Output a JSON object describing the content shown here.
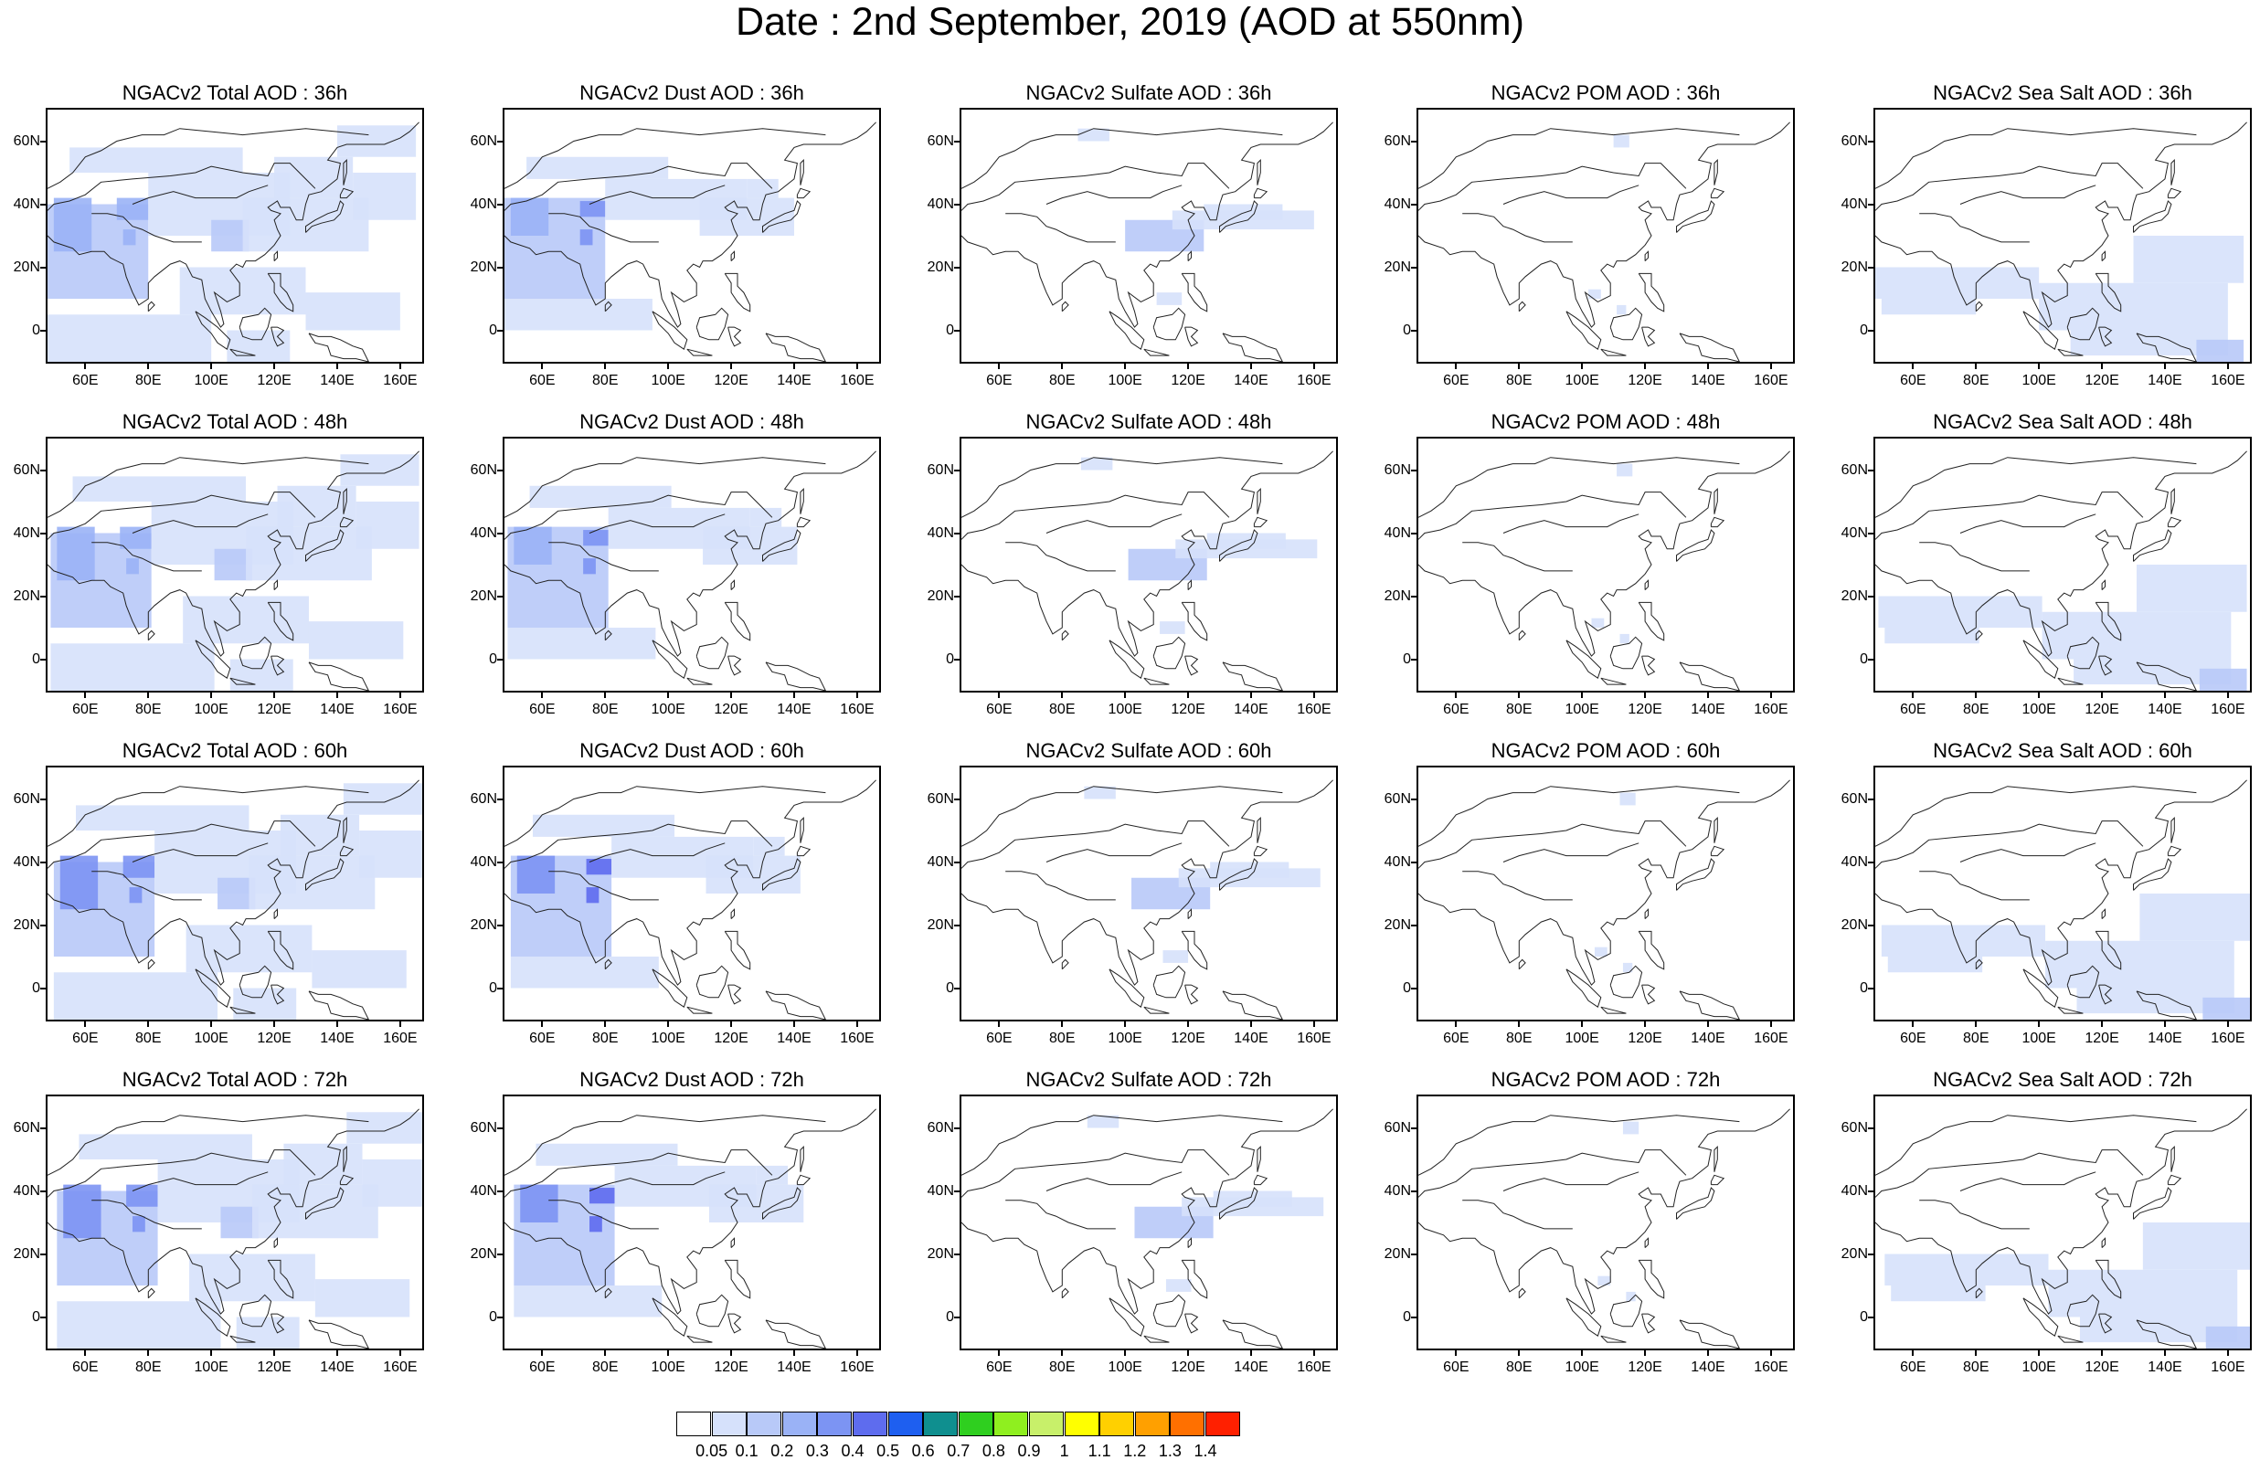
{
  "title": "Date : 2nd September, 2019 (AOD at 550nm)",
  "lat_labels": [
    "60N",
    "40N",
    "20N",
    "0"
  ],
  "lon_labels": [
    "60E",
    "80E",
    "100E",
    "120E",
    "140E",
    "160E"
  ],
  "lat_values": [
    60,
    40,
    20,
    0
  ],
  "lon_values": [
    60,
    80,
    100,
    120,
    140,
    160
  ],
  "extent": {
    "lon": [
      48,
      167
    ],
    "lat": [
      -10,
      70
    ]
  },
  "panels": [
    {
      "title": "NGACv2 Total AOD : 36h",
      "field": "total",
      "hour": 36
    },
    {
      "title": "NGACv2 Dust AOD : 36h",
      "field": "dust",
      "hour": 36
    },
    {
      "title": "NGACv2 Sulfate AOD : 36h",
      "field": "sulfate",
      "hour": 36
    },
    {
      "title": "NGACv2 POM AOD : 36h",
      "field": "pom",
      "hour": 36
    },
    {
      "title": "NGACv2 Sea Salt AOD : 36h",
      "field": "seasalt",
      "hour": 36
    },
    {
      "title": "NGACv2 Total AOD : 48h",
      "field": "total",
      "hour": 48
    },
    {
      "title": "NGACv2 Dust AOD : 48h",
      "field": "dust",
      "hour": 48
    },
    {
      "title": "NGACv2 Sulfate AOD : 48h",
      "field": "sulfate",
      "hour": 48
    },
    {
      "title": "NGACv2 POM AOD : 48h",
      "field": "pom",
      "hour": 48
    },
    {
      "title": "NGACv2 Sea Salt AOD : 48h",
      "field": "seasalt",
      "hour": 48
    },
    {
      "title": "NGACv2 Total AOD : 60h",
      "field": "total",
      "hour": 60
    },
    {
      "title": "NGACv2 Dust AOD : 60h",
      "field": "dust",
      "hour": 60
    },
    {
      "title": "NGACv2 Sulfate AOD : 60h",
      "field": "sulfate",
      "hour": 60
    },
    {
      "title": "NGACv2 POM AOD : 60h",
      "field": "pom",
      "hour": 60
    },
    {
      "title": "NGACv2 Sea Salt AOD : 60h",
      "field": "seasalt",
      "hour": 60
    },
    {
      "title": "NGACv2 Total AOD : 72h",
      "field": "total",
      "hour": 72
    },
    {
      "title": "NGACv2 Dust AOD : 72h",
      "field": "dust",
      "hour": 72
    },
    {
      "title": "NGACv2 Sulfate AOD : 72h",
      "field": "sulfate",
      "hour": 72
    },
    {
      "title": "NGACv2 POM AOD : 72h",
      "field": "pom",
      "hour": 72
    },
    {
      "title": "NGACv2 Sea Salt  AOD : 72h",
      "field": "seasalt",
      "hour": 72
    }
  ],
  "colorbar": {
    "colors": [
      "#ffffff",
      "#d6e1fb",
      "#b8c9f8",
      "#9ab2f6",
      "#7c94f3",
      "#5e6cee",
      "#1e5ff0",
      "#0f8f8f",
      "#2fcf1f",
      "#8fef1f",
      "#c8f06a",
      "#ffff00",
      "#ffd000",
      "#ffa000",
      "#ff7000",
      "#ff2000"
    ],
    "labels": [
      "0.05",
      "0.1",
      "0.2",
      "0.3",
      "0.4",
      "0.5",
      "0.6",
      "0.7",
      "0.8",
      "0.9",
      "1",
      "1.1",
      "1.2",
      "1.3",
      "1.4"
    ]
  },
  "aerosol_patches": {
    "total": [
      [
        48,
        10,
        80,
        40,
        2
      ],
      [
        50,
        25,
        62,
        42,
        3
      ],
      [
        70,
        35,
        80,
        42,
        3
      ],
      [
        72,
        27,
        76,
        32,
        3
      ],
      [
        80,
        30,
        125,
        50,
        1
      ],
      [
        55,
        50,
        110,
        58,
        1
      ],
      [
        100,
        25,
        112,
        35,
        2
      ],
      [
        110,
        25,
        150,
        42,
        1
      ],
      [
        120,
        42,
        145,
        55,
        1
      ],
      [
        145,
        35,
        165,
        50,
        1
      ],
      [
        90,
        5,
        130,
        20,
        1
      ],
      [
        130,
        0,
        160,
        12,
        1
      ],
      [
        48,
        -10,
        100,
        5,
        1
      ],
      [
        105,
        -10,
        125,
        0,
        1
      ],
      [
        140,
        55,
        165,
        65,
        1
      ]
    ],
    "dust": [
      [
        48,
        10,
        80,
        42,
        2
      ],
      [
        50,
        30,
        62,
        42,
        3
      ],
      [
        72,
        36,
        80,
        41,
        4
      ],
      [
        72,
        27,
        76,
        32,
        4
      ],
      [
        80,
        35,
        125,
        48,
        1
      ],
      [
        55,
        48,
        100,
        55,
        1
      ],
      [
        110,
        30,
        140,
        42,
        1
      ],
      [
        48,
        0,
        95,
        10,
        1
      ],
      [
        125,
        42,
        135,
        48,
        1
      ]
    ],
    "sulfate": [
      [
        100,
        25,
        125,
        35,
        2
      ],
      [
        115,
        32,
        160,
        38,
        1
      ],
      [
        125,
        35,
        150,
        40,
        1
      ],
      [
        85,
        60,
        95,
        64,
        1
      ],
      [
        110,
        8,
        118,
        12,
        1
      ]
    ],
    "pom": [
      [
        102,
        10,
        106,
        13,
        1
      ],
      [
        110,
        58,
        115,
        62,
        1
      ],
      [
        111,
        5,
        114,
        8,
        1
      ]
    ],
    "seasalt": [
      [
        48,
        10,
        100,
        20,
        1
      ],
      [
        100,
        0,
        160,
        15,
        1
      ],
      [
        130,
        15,
        165,
        30,
        1
      ],
      [
        50,
        5,
        80,
        10,
        1
      ],
      [
        110,
        -8,
        160,
        0,
        1
      ],
      [
        150,
        -10,
        165,
        -3,
        2
      ]
    ]
  }
}
